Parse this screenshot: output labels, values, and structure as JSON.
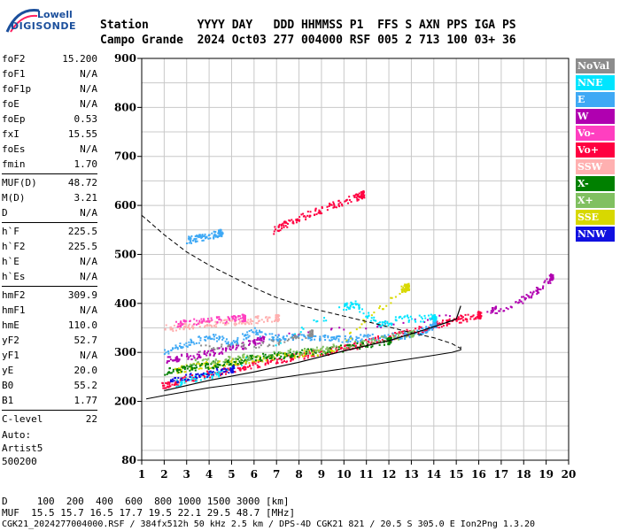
{
  "logo": {
    "brand": "Lowell",
    "name": "DIGISONDE"
  },
  "header": {
    "line1": "Station       YYYY DAY   DDD HHMMSS P1  FFS S AXN PPS IGA PS",
    "line2": "Campo Grande  2024 Oct03 277 004000 RSF 005 2 713 100 03+ 36"
  },
  "params": {
    "group1": [
      {
        "k": "foF2",
        "v": "15.200"
      },
      {
        "k": "foF1",
        "v": "N/A"
      },
      {
        "k": "foF1p",
        "v": "N/A"
      },
      {
        "k": "foE",
        "v": "N/A"
      },
      {
        "k": "foEp",
        "v": "0.53"
      },
      {
        "k": "fxI",
        "v": "15.55"
      },
      {
        "k": "foEs",
        "v": "N/A"
      },
      {
        "k": "fmin",
        "v": "1.70"
      }
    ],
    "group2": [
      {
        "k": "MUF(D)",
        "v": "48.72"
      },
      {
        "k": "M(D)",
        "v": "3.21"
      },
      {
        "k": "D",
        "v": "N/A"
      }
    ],
    "group3": [
      {
        "k": "h`F",
        "v": "225.5"
      },
      {
        "k": "h`F2",
        "v": "225.5"
      },
      {
        "k": "h`E",
        "v": "N/A"
      },
      {
        "k": "h`Es",
        "v": "N/A"
      }
    ],
    "group4": [
      {
        "k": "hmF2",
        "v": "309.9"
      },
      {
        "k": "hmF1",
        "v": "N/A"
      },
      {
        "k": "hmE",
        "v": "110.0"
      },
      {
        "k": "yF2",
        "v": "52.7"
      },
      {
        "k": "yF1",
        "v": "N/A"
      },
      {
        "k": "yE",
        "v": "20.0"
      },
      {
        "k": "B0",
        "v": "55.2"
      },
      {
        "k": "B1",
        "v": "1.77"
      }
    ],
    "group5": [
      {
        "k": "C-level",
        "v": "22"
      }
    ]
  },
  "auto": [
    "Auto:",
    "Artist5",
    "500200"
  ],
  "legend": [
    {
      "label": "NoVal",
      "color": "#8c8c8c"
    },
    {
      "label": "NNE",
      "color": "#00e5ff"
    },
    {
      "label": "E",
      "color": "#3fa9f5"
    },
    {
      "label": "W",
      "color": "#b000b0"
    },
    {
      "label": "Vo-",
      "color": "#ff3fc0"
    },
    {
      "label": "Vo+",
      "color": "#ff0040"
    },
    {
      "label": "SSW",
      "color": "#ffb0b0"
    },
    {
      "label": "X-",
      "color": "#008000"
    },
    {
      "label": "X+",
      "color": "#80c060"
    },
    {
      "label": "SSE",
      "color": "#d8d800"
    },
    {
      "label": "NNW",
      "color": "#1010e0"
    }
  ],
  "footer": {
    "line1": "D     100  200  400  600  800 1000 1500 3000 [km]",
    "line2": "MUF  15.5 15.7 16.5 17.7 19.5 22.1 29.5 48.7 [MHz]",
    "line3": "CGK21_2024277004000.RSF / 384fx512h 50 kHz 2.5 km / DPS-4D CGK21 821 / 20.5 S 305.0 E Ion2Png 1.3.20"
  },
  "chart_data": {
    "type": "scatter",
    "title": "",
    "xlabel": "",
    "ylabel": "",
    "xlim": [
      1,
      20
    ],
    "ylim": [
      80,
      900
    ],
    "x_ticks": [
      1,
      2,
      3,
      4,
      5,
      6,
      7,
      8,
      9,
      10,
      11,
      12,
      13,
      14,
      15,
      16,
      17,
      18,
      19,
      20
    ],
    "y_ticks": [
      80,
      200,
      300,
      400,
      500,
      600,
      700,
      800,
      900
    ],
    "grid": true,
    "series": [
      {
        "name": "Vo+",
        "color": "#ff0040",
        "points": [
          [
            1.8,
            232
          ],
          [
            2.5,
            240
          ],
          [
            3.5,
            252
          ],
          [
            4.5,
            262
          ],
          [
            5.5,
            272
          ],
          [
            6.5,
            282
          ],
          [
            7.5,
            290
          ],
          [
            8.5,
            298
          ],
          [
            9.5,
            306
          ],
          [
            10.5,
            315
          ],
          [
            11.5,
            328
          ],
          [
            12.5,
            338
          ],
          [
            13.5,
            350
          ],
          [
            14.5,
            362
          ],
          [
            15.2,
            370
          ],
          [
            16.0,
            378
          ]
        ]
      },
      {
        "name": "W",
        "color": "#b000b0",
        "points": [
          [
            2.0,
            285
          ],
          [
            3.0,
            292
          ],
          [
            4.0,
            300
          ],
          [
            5.0,
            310
          ],
          [
            6.0,
            322
          ],
          [
            6.5,
            330
          ],
          [
            16.5,
            385
          ],
          [
            17.5,
            398
          ],
          [
            18.5,
            425
          ],
          [
            19.2,
            455
          ]
        ]
      },
      {
        "name": "E",
        "color": "#3fa9f5",
        "points": [
          [
            2.0,
            300
          ],
          [
            3.0,
            320
          ],
          [
            4.0,
            335
          ],
          [
            5.0,
            320
          ],
          [
            6.0,
            345
          ],
          [
            7.0,
            330
          ],
          [
            8.0,
            335
          ],
          [
            9.0,
            330
          ],
          [
            10.0,
            328
          ],
          [
            11.0,
            332
          ],
          [
            12.5,
            335
          ],
          [
            13.5,
            345
          ],
          [
            14.0,
            358
          ]
        ]
      },
      {
        "name": "NNE",
        "color": "#00e5ff",
        "points": [
          [
            2.5,
            238
          ],
          [
            3.5,
            250
          ],
          [
            4.5,
            258
          ],
          [
            10.0,
            395
          ],
          [
            10.5,
            400
          ],
          [
            11.5,
            355
          ],
          [
            12.5,
            370
          ],
          [
            14.0,
            372
          ]
        ]
      },
      {
        "name": "SSE",
        "color": "#d8d800",
        "points": [
          [
            2.5,
            265
          ],
          [
            3.5,
            275
          ],
          [
            4.5,
            278
          ],
          [
            5.5,
            285
          ],
          [
            6.5,
            290
          ],
          [
            8.0,
            298
          ],
          [
            9.5,
            305
          ],
          [
            12.5,
            428
          ],
          [
            12.8,
            435
          ]
        ]
      },
      {
        "name": "SSW",
        "color": "#ffb0b0",
        "points": [
          [
            2.0,
            350
          ],
          [
            3.0,
            355
          ],
          [
            4.0,
            360
          ],
          [
            5.0,
            362
          ],
          [
            6.0,
            368
          ],
          [
            7.0,
            372
          ]
        ]
      },
      {
        "name": "X-",
        "color": "#008000",
        "points": [
          [
            2.0,
            262
          ],
          [
            3.0,
            270
          ],
          [
            4.0,
            275
          ],
          [
            5.0,
            282
          ],
          [
            6.0,
            290
          ],
          [
            7.0,
            295
          ],
          [
            8.0,
            300
          ],
          [
            10.0,
            310
          ],
          [
            12.0,
            325
          ]
        ]
      },
      {
        "name": "X+",
        "color": "#80c060",
        "points": [
          [
            3.0,
            278
          ],
          [
            5.0,
            288
          ],
          [
            7.0,
            298
          ],
          [
            9.0,
            308
          ],
          [
            11.0,
            322
          ],
          [
            13.0,
            340
          ]
        ]
      },
      {
        "name": "NNW",
        "color": "#1010e0",
        "points": [
          [
            2.2,
            245
          ],
          [
            3.5,
            255
          ],
          [
            5.0,
            268
          ]
        ]
      },
      {
        "name": "Vo-",
        "color": "#ff3fc0",
        "points": [
          [
            2.5,
            360
          ],
          [
            3.5,
            365
          ],
          [
            4.5,
            368
          ],
          [
            5.5,
            372
          ]
        ]
      },
      {
        "name": "NoVal",
        "color": "#8c8c8c",
        "points": [
          [
            3.5,
            310
          ],
          [
            6.5,
            318
          ],
          [
            8.5,
            340
          ]
        ]
      },
      {
        "name": "Vo+ upper",
        "color": "#ff0040",
        "points": [
          [
            6.8,
            548
          ],
          [
            7.5,
            565
          ],
          [
            8.5,
            585
          ],
          [
            9.5,
            602
          ],
          [
            10.5,
            618
          ],
          [
            10.8,
            624
          ]
        ]
      },
      {
        "name": "E upper",
        "color": "#3fa9f5",
        "points": [
          [
            3.0,
            530
          ],
          [
            3.5,
            535
          ],
          [
            4.0,
            540
          ],
          [
            4.5,
            545
          ]
        ]
      }
    ],
    "profile_dashed": [
      [
        1.0,
        580
      ],
      [
        1.5,
        560
      ],
      [
        2.0,
        540
      ],
      [
        3.0,
        505
      ],
      [
        4.0,
        478
      ],
      [
        5.0,
        455
      ],
      [
        6.0,
        432
      ],
      [
        7.0,
        412
      ],
      [
        8.0,
        397
      ],
      [
        9.0,
        385
      ],
      [
        10.0,
        374
      ],
      [
        11.0,
        363
      ],
      [
        12.0,
        352
      ],
      [
        13.0,
        340
      ],
      [
        14.0,
        330
      ],
      [
        14.8,
        318
      ],
      [
        15.2,
        308
      ]
    ],
    "trace_solid": [
      [
        1.2,
        205
      ],
      [
        2.0,
        212
      ],
      [
        3.0,
        220
      ],
      [
        4.0,
        228
      ],
      [
        5.0,
        234
      ],
      [
        6.0,
        240
      ],
      [
        7.0,
        247
      ],
      [
        8.0,
        254
      ],
      [
        9.0,
        260
      ],
      [
        10.0,
        267
      ],
      [
        11.0,
        273
      ],
      [
        12.0,
        280
      ],
      [
        13.0,
        287
      ],
      [
        14.0,
        294
      ],
      [
        14.8,
        300
      ],
      [
        15.2,
        305
      ],
      [
        15.2,
        312
      ]
    ],
    "trace_model": [
      [
        2.0,
        222
      ],
      [
        4.0,
        243
      ],
      [
        6.0,
        260
      ],
      [
        8.0,
        280
      ],
      [
        10.0,
        303
      ],
      [
        12.0,
        324
      ],
      [
        13.5,
        345
      ],
      [
        14.5,
        360
      ],
      [
        15.0,
        368
      ],
      [
        15.2,
        395
      ]
    ]
  }
}
